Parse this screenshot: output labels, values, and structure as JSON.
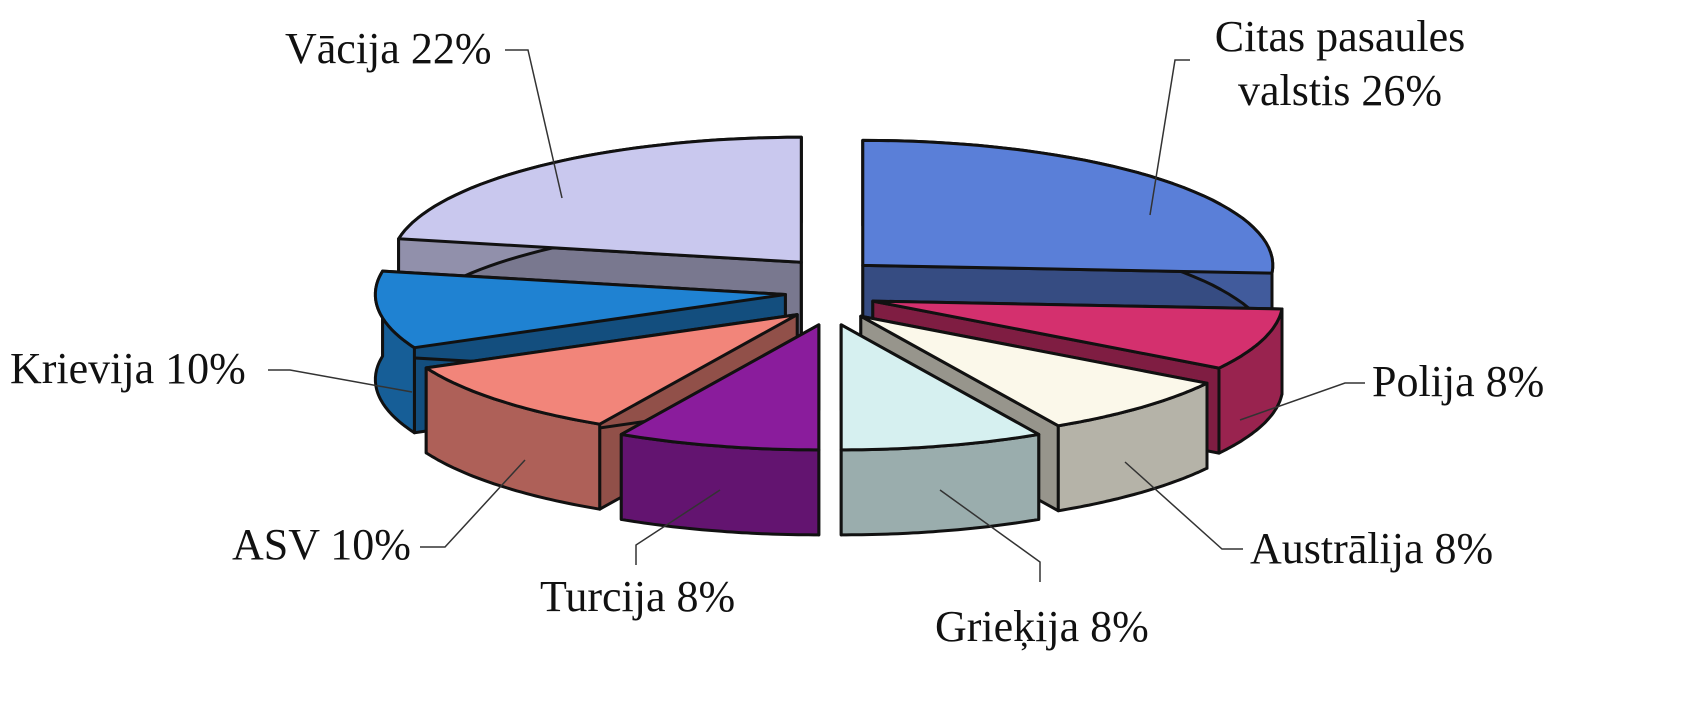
{
  "chart_data": {
    "type": "pie",
    "value_labels": [
      "Citas pasaules valstis 26%",
      "Polija 8%",
      "Austrālija 8%",
      "Grieķija 8%",
      "Turcija 8%",
      "ASV 10%",
      "Krievija 10%",
      "Vācija 22%"
    ],
    "values": [
      26,
      8,
      8,
      8,
      8,
      10,
      10,
      22
    ],
    "colors": [
      "#5a7fd8",
      "#d4306e",
      "#fbf8ea",
      "#d6f0f0",
      "#8a1c9c",
      "#f2857a",
      "#1f82d2",
      "#c9c8ee"
    ]
  }
}
